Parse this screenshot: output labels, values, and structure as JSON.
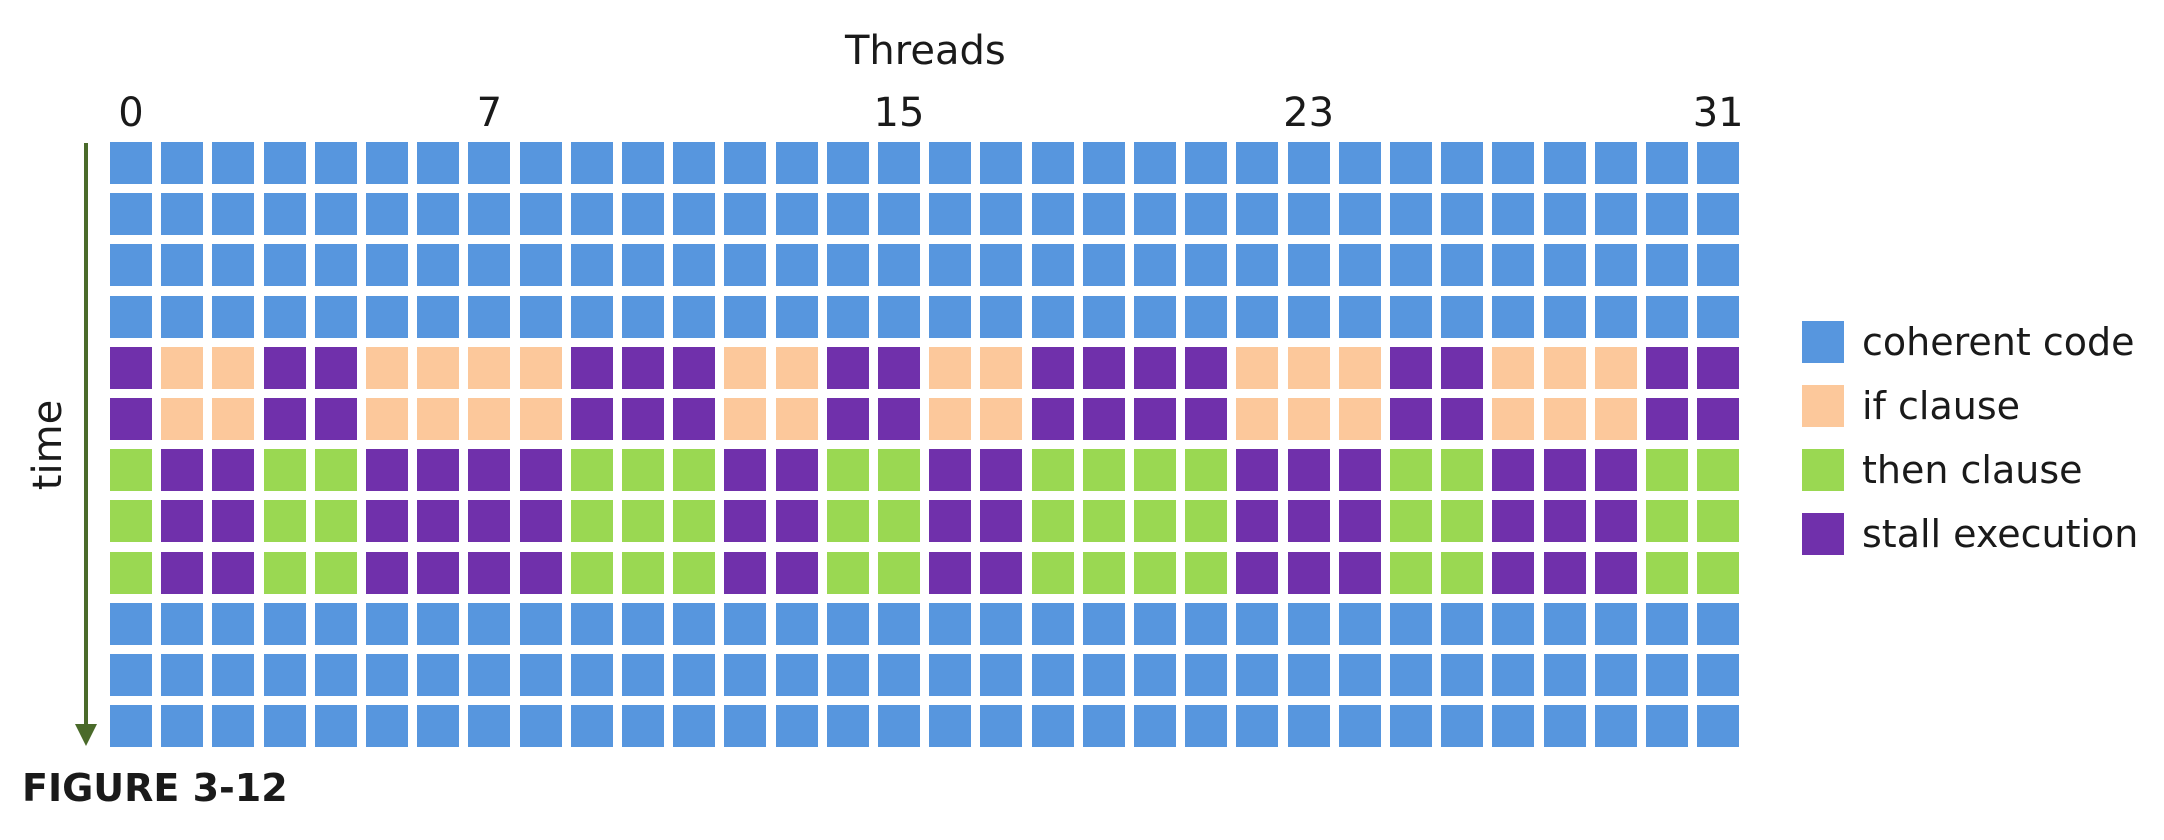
{
  "header": {
    "title": "Threads"
  },
  "axis": {
    "tick_labels": [
      {
        "thread": 0,
        "label": "0"
      },
      {
        "thread": 7,
        "label": "7"
      },
      {
        "thread": 15,
        "label": "15"
      },
      {
        "thread": 23,
        "label": "23"
      },
      {
        "thread": 31,
        "label": "31"
      }
    ],
    "time_label": "time"
  },
  "colors": {
    "coherent": "#5796de",
    "if": "#fcc89b",
    "then": "#9ad852",
    "stall": "#7030ab"
  },
  "grid": {
    "columns": 32,
    "if_threads": [
      1,
      2,
      5,
      6,
      7,
      8,
      12,
      13,
      16,
      17,
      22,
      23,
      24,
      27,
      28,
      29
    ],
    "row_phases": [
      "coherent",
      "coherent",
      "coherent",
      "coherent",
      "if",
      "if",
      "then",
      "then",
      "then",
      "coherent",
      "coherent",
      "coherent"
    ]
  },
  "legend": {
    "items": [
      {
        "key": "coherent",
        "label": "coherent code"
      },
      {
        "key": "if",
        "label": "if clause"
      },
      {
        "key": "then",
        "label": "then clause"
      },
      {
        "key": "stall",
        "label": "stall execution"
      }
    ]
  },
  "figure_label": "FIGURE 3-12"
}
